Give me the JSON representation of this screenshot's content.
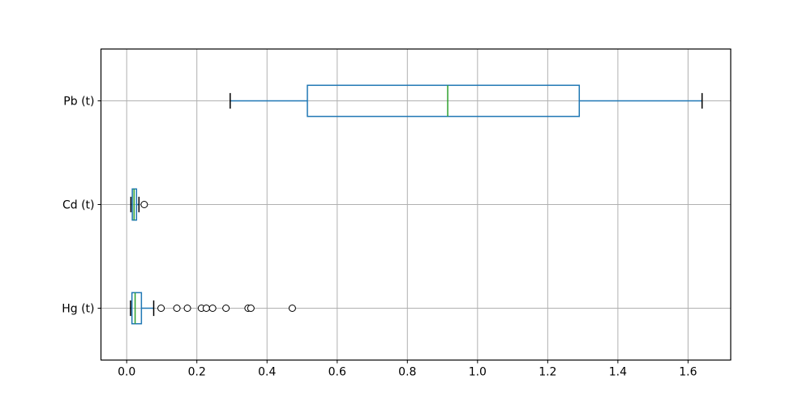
{
  "chart_data": {
    "type": "boxplot",
    "orientation": "horizontal",
    "grid": true,
    "legend": false,
    "xlim": [
      -0.0733,
      1.7216
    ],
    "xticks": [
      0.0,
      0.2,
      0.4,
      0.6,
      0.8,
      1.0,
      1.2,
      1.4,
      1.6
    ],
    "xtick_labels": [
      "0.0",
      "0.2",
      "0.4",
      "0.6",
      "0.8",
      "1.0",
      "1.2",
      "1.4",
      "1.6"
    ],
    "categories_top_to_bottom": [
      "Pb (t)",
      "Cd (t)",
      "Hg (t)"
    ],
    "series": [
      {
        "label": "Pb (t)",
        "position": 3,
        "whisker_low": 0.295,
        "q1": 0.515,
        "median": 0.915,
        "q3": 1.29,
        "whisker_high": 1.64,
        "outliers": []
      },
      {
        "label": "Cd (t)",
        "position": 2,
        "whisker_low": 0.012,
        "q1": 0.016,
        "median": 0.021,
        "q3": 0.028,
        "whisker_high": 0.035,
        "outliers": [
          0.05
        ]
      },
      {
        "label": "Hg (t)",
        "position": 1,
        "whisker_low": 0.011,
        "q1": 0.015,
        "median": 0.024,
        "q3": 0.042,
        "whisker_high": 0.077,
        "outliers": [
          0.098,
          0.143,
          0.173,
          0.213,
          0.227,
          0.245,
          0.283,
          0.346,
          0.354,
          0.472
        ]
      }
    ],
    "colors": {
      "box": "#1f77b4",
      "whisker": "#1f77b4",
      "cap": "#000000",
      "median": "#2ca02c",
      "flier_edge": "#000000",
      "flier_fill": "#ffffff",
      "grid": "#b0b0b0",
      "axis": "#000000",
      "text": "#000000",
      "background": "#ffffff"
    }
  }
}
